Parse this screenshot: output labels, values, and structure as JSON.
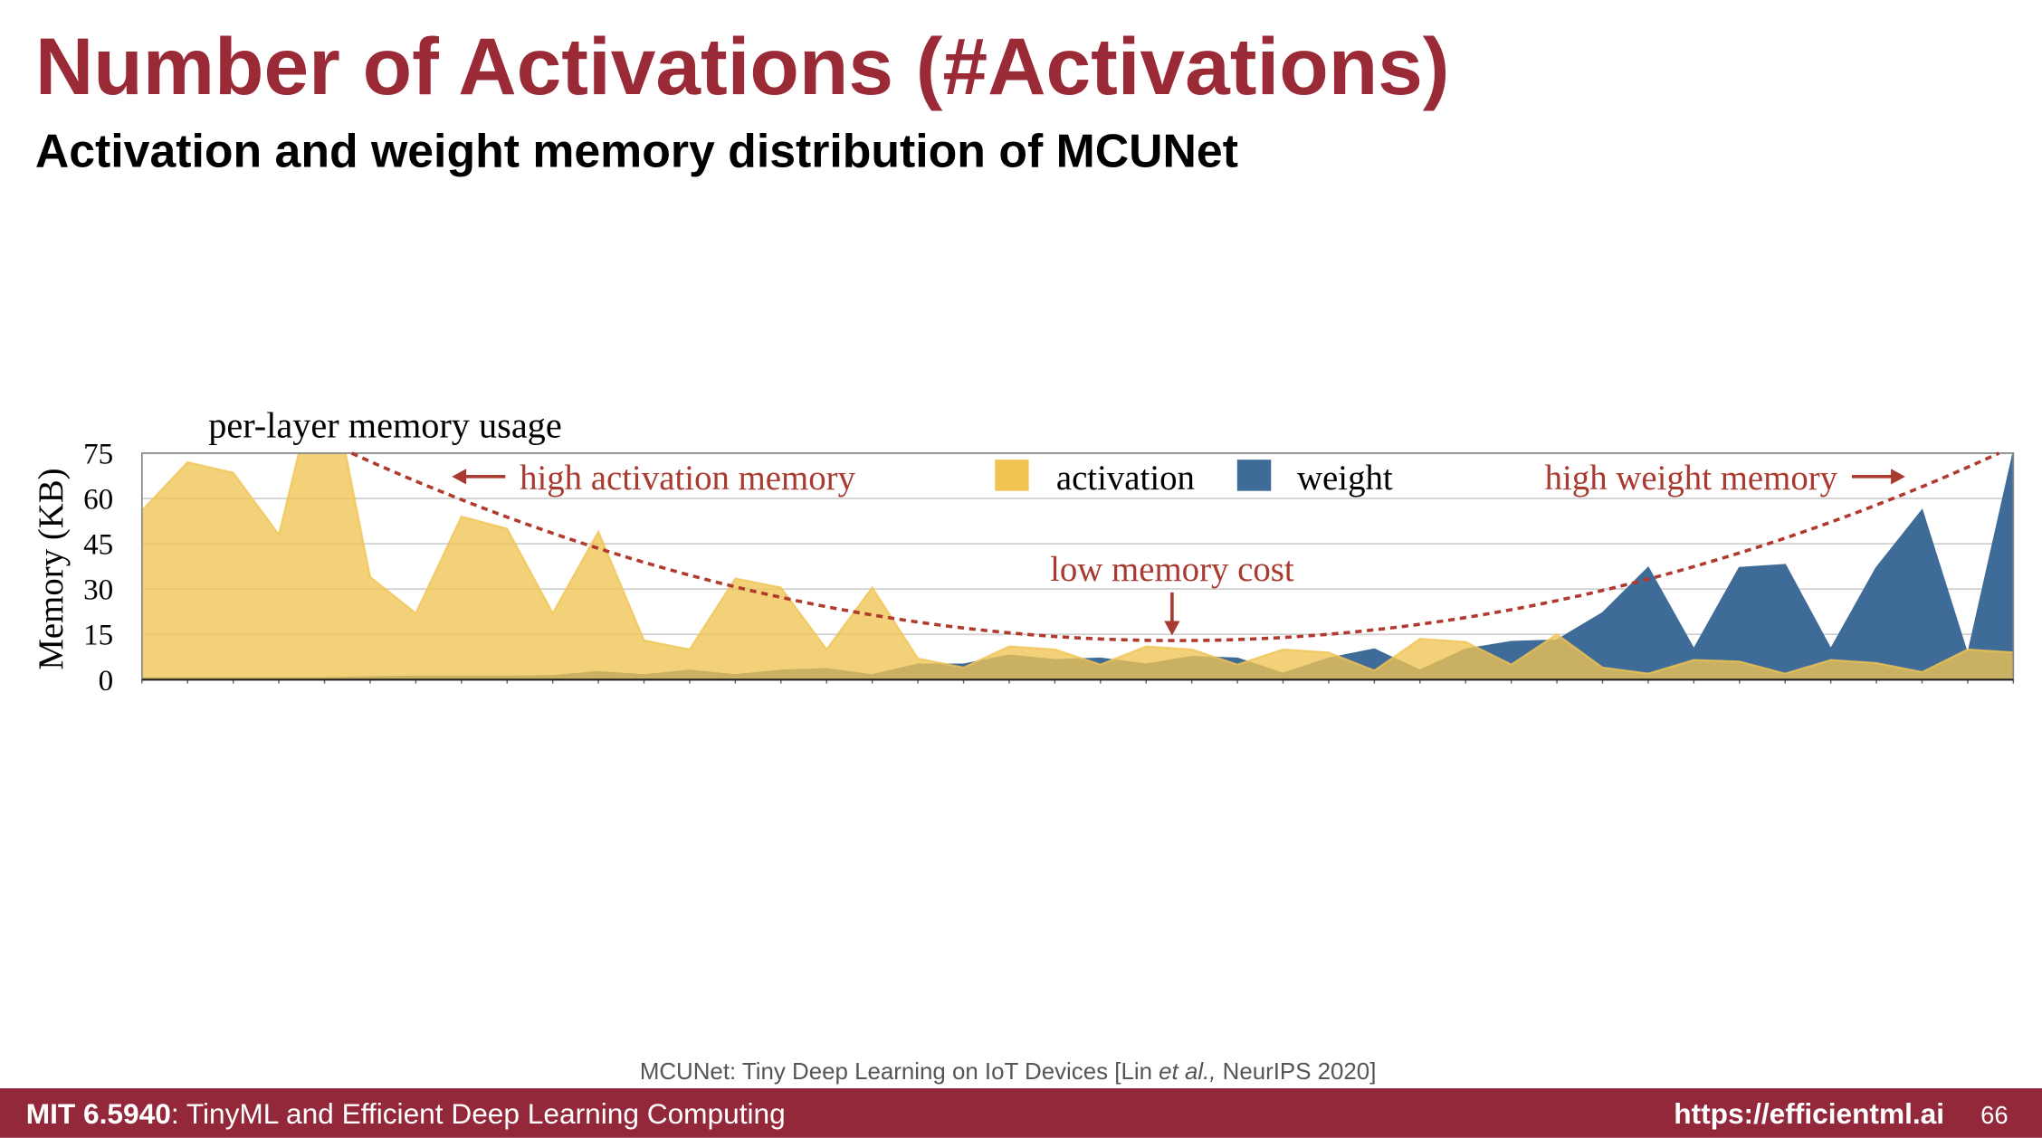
{
  "slide": {
    "title": "Number of Activations (#Activations)",
    "subtitle": "Activation and weight memory distribution of MCUNet",
    "citation": [
      "MCUNet: Tiny Deep Learning on IoT Devices [Lin ",
      "et al.,",
      " NeurIPS 2020]"
    ],
    "footer": {
      "course": "MIT 6.5940",
      "course_name": ": TinyML and Efficient Deep Learning Computing",
      "url": "https://efficientml.ai",
      "page": "66"
    }
  },
  "chart_data": {
    "type": "area",
    "title": "per-layer memory usage",
    "ylabel": "Memory (KB)",
    "annotations": [
      "high activation memory",
      "low memory cost",
      "high weight memory"
    ],
    "categories": [
      null,
      null,
      null,
      null,
      null,
      null,
      null,
      null,
      null,
      null,
      null,
      null,
      null,
      null,
      null,
      null,
      null,
      null,
      null,
      null,
      null,
      null,
      null,
      null,
      null,
      null,
      null,
      null,
      null,
      null,
      null,
      null,
      null,
      null,
      null,
      null,
      null,
      null,
      null,
      null,
      null,
      null
    ],
    "series": [
      {
        "name": "activation",
        "color": "#f0c453",
        "values": [
          56,
          72,
          68.5,
          48,
          110,
          34,
          22,
          54,
          50,
          22,
          49,
          13,
          10,
          33.5,
          30.5,
          10,
          30.5,
          7,
          4,
          11,
          10,
          5,
          11,
          10,
          5,
          10,
          9,
          3,
          13.5,
          12.5,
          5,
          15,
          4,
          2,
          6.5,
          6,
          2,
          6.5,
          5.5,
          2.5,
          10,
          9
        ]
      },
      {
        "name": "weight",
        "color": "#3f6b98",
        "values": [
          0.5,
          0.5,
          0.5,
          0.5,
          0.5,
          0.8,
          1,
          1,
          1,
          1.2,
          2.5,
          1.5,
          3,
          1.5,
          3,
          3.5,
          1.5,
          5,
          5,
          8,
          6.5,
          7,
          5,
          7.5,
          7,
          2,
          7,
          10,
          3,
          10,
          12.5,
          13,
          22,
          37,
          10,
          37,
          38,
          10,
          37,
          56,
          8,
          75
        ]
      }
    ],
    "ylim": [
      0,
      75
    ],
    "yticks": [
      0,
      15,
      30,
      45,
      60,
      75
    ],
    "grid": true,
    "legend": "top-center"
  }
}
